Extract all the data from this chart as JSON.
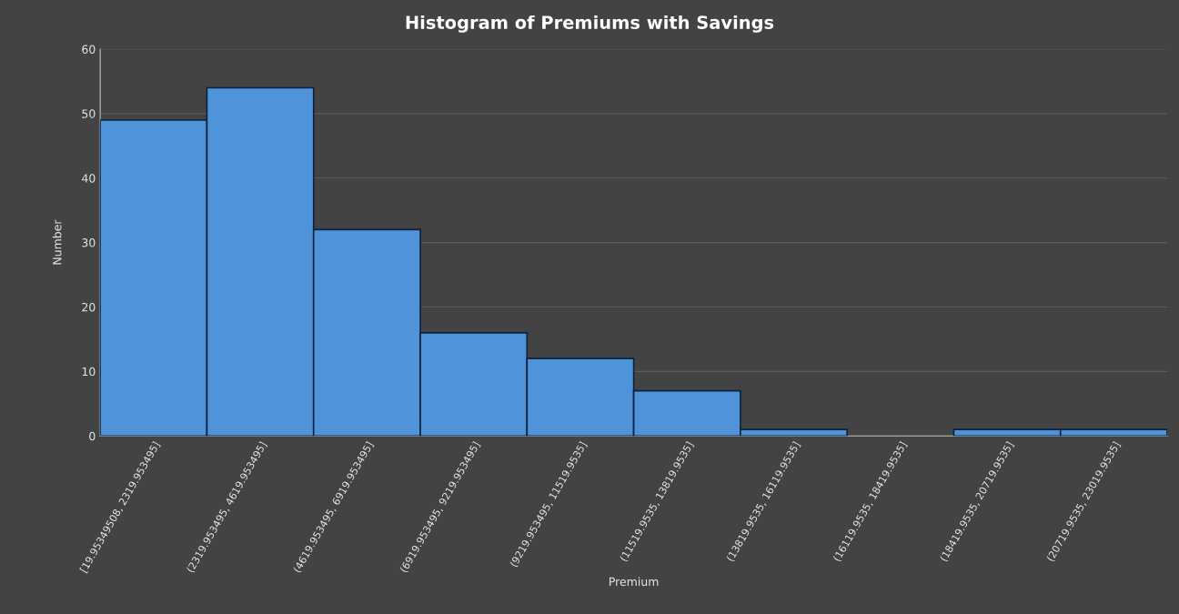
{
  "chart_data": {
    "type": "bar",
    "title": "Histogram of Premiums with Savings",
    "xlabel": "Premium",
    "ylabel": "Number",
    "categories": [
      "[19.95349508, 2319.953495]",
      "(2319.953495, 4619.953495]",
      "(4619.953495, 6919.953495]",
      "(6919.953495, 9219.953495]",
      "(9219.953495, 11519.9535]",
      "(11519.9535, 13819.9535]",
      "(13819.9535, 16119.9535]",
      "(16119.9535, 18419.9535]",
      "(18419.9535, 20719.9535]",
      "(20719.9535, 23019.9535]"
    ],
    "values": [
      49,
      54,
      32,
      16,
      12,
      7,
      1,
      0,
      1,
      1
    ],
    "color": "#4f93d8",
    "ylim": [
      0,
      60
    ],
    "yticks": [
      0,
      10,
      20,
      30,
      40,
      50,
      60
    ],
    "grid": "y"
  }
}
